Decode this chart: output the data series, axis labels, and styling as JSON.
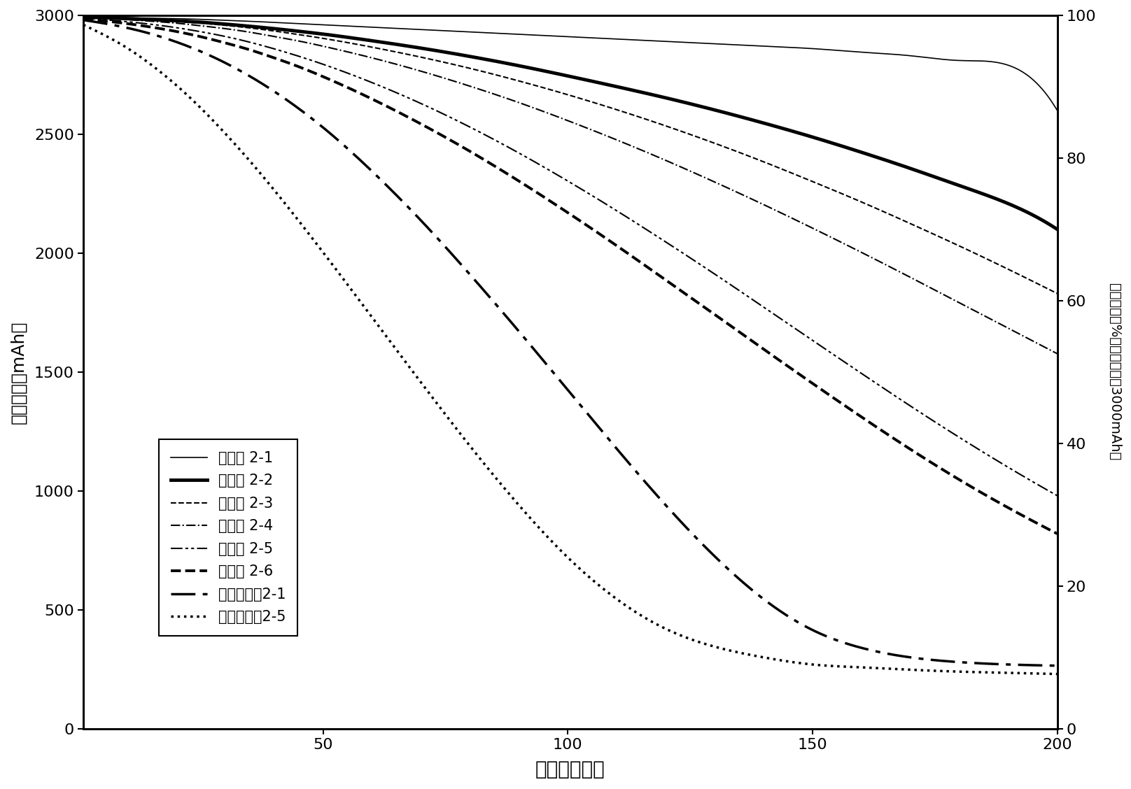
{
  "xlabel": "循环（次数）",
  "ylabel_left": "放电容量（mAh）",
  "ylabel_right": "容量比率（%，初期容量为3000mAh）",
  "xlim": [
    1,
    200
  ],
  "ylim_left": [
    0,
    3000
  ],
  "ylim_right": [
    0,
    100
  ],
  "xticks": [
    50,
    100,
    150,
    200
  ],
  "yticks_left": [
    0,
    500,
    1000,
    1500,
    2000,
    2500,
    3000
  ],
  "yticks_right": [
    0,
    20,
    40,
    60,
    80,
    100
  ],
  "series": [
    {
      "label": "实施例 2-1",
      "linestyle": "solid",
      "linewidth": 1.2,
      "color": "#000000",
      "x": [
        1,
        5,
        10,
        15,
        20,
        25,
        30,
        35,
        40,
        45,
        50,
        60,
        70,
        80,
        90,
        100,
        110,
        120,
        130,
        140,
        150,
        160,
        170,
        180,
        190,
        200
      ],
      "y": [
        2995,
        2993,
        2990,
        2988,
        2986,
        2983,
        2979,
        2975,
        2970,
        2965,
        2960,
        2950,
        2940,
        2930,
        2920,
        2910,
        2900,
        2890,
        2880,
        2870,
        2860,
        2845,
        2830,
        2810,
        2790,
        2600
      ]
    },
    {
      "label": "实施例 2-2",
      "linestyle": "solid",
      "linewidth": 3.5,
      "color": "#000000",
      "x": [
        1,
        5,
        10,
        15,
        20,
        25,
        30,
        35,
        40,
        45,
        50,
        60,
        70,
        80,
        90,
        100,
        110,
        120,
        130,
        140,
        150,
        160,
        170,
        180,
        190,
        200
      ],
      "y": [
        2993,
        2990,
        2986,
        2982,
        2977,
        2971,
        2963,
        2954,
        2944,
        2933,
        2921,
        2893,
        2862,
        2827,
        2788,
        2745,
        2700,
        2653,
        2602,
        2547,
        2488,
        2424,
        2356,
        2284,
        2208,
        2100
      ]
    },
    {
      "label": "实施例 2-3",
      "linestyle": "dashed",
      "linewidth": 1.5,
      "color": "#000000",
      "x": [
        1,
        5,
        10,
        15,
        20,
        25,
        30,
        35,
        40,
        45,
        50,
        60,
        70,
        80,
        90,
        100,
        110,
        120,
        130,
        140,
        150,
        160,
        170,
        180,
        190,
        200
      ],
      "y": [
        2992,
        2989,
        2985,
        2980,
        2974,
        2967,
        2958,
        2947,
        2934,
        2919,
        2903,
        2866,
        2824,
        2777,
        2724,
        2666,
        2603,
        2535,
        2462,
        2384,
        2301,
        2215,
        2124,
        2030,
        1932,
        1830
      ]
    },
    {
      "label": "实施例 2-4",
      "linestyle": "dashdot",
      "linewidth": 1.5,
      "color": "#000000",
      "x": [
        1,
        5,
        10,
        15,
        20,
        25,
        30,
        35,
        40,
        45,
        50,
        60,
        70,
        80,
        90,
        100,
        110,
        120,
        130,
        140,
        150,
        160,
        170,
        180,
        190,
        200
      ],
      "y": [
        2991,
        2987,
        2982,
        2975,
        2967,
        2956,
        2944,
        2929,
        2911,
        2892,
        2870,
        2821,
        2765,
        2702,
        2633,
        2557,
        2476,
        2390,
        2299,
        2204,
        2105,
        2003,
        1898,
        1791,
        1684,
        1577
      ]
    },
    {
      "label": "实施例 2-5",
      "linestyle": "dashdotdotted",
      "linewidth": 1.5,
      "color": "#000000",
      "x": [
        1,
        5,
        10,
        15,
        20,
        25,
        30,
        35,
        40,
        45,
        50,
        60,
        70,
        80,
        90,
        100,
        110,
        120,
        130,
        140,
        150,
        160,
        170,
        180,
        190,
        200
      ],
      "y": [
        2988,
        2982,
        2973,
        2962,
        2948,
        2931,
        2911,
        2887,
        2859,
        2828,
        2794,
        2717,
        2629,
        2530,
        2421,
        2303,
        2178,
        2047,
        1912,
        1773,
        1633,
        1494,
        1357,
        1225,
        1099,
        980
      ]
    },
    {
      "label": "实施例 2-6",
      "linestyle": "dashed",
      "linewidth": 2.8,
      "color": "#000000",
      "x": [
        1,
        5,
        10,
        15,
        20,
        25,
        30,
        35,
        40,
        45,
        50,
        60,
        70,
        80,
        90,
        100,
        110,
        120,
        130,
        140,
        150,
        160,
        170,
        180,
        190,
        200
      ],
      "y": [
        2985,
        2977,
        2965,
        2950,
        2932,
        2910,
        2884,
        2855,
        2821,
        2784,
        2742,
        2648,
        2543,
        2428,
        2303,
        2170,
        2031,
        1887,
        1742,
        1596,
        1452,
        1311,
        1175,
        1047,
        929,
        820
      ]
    },
    {
      "label": "比较实施例2-1",
      "linestyle": "dashdot2",
      "linewidth": 2.5,
      "color": "#000000",
      "x": [
        1,
        5,
        10,
        15,
        20,
        25,
        30,
        35,
        40,
        45,
        50,
        60,
        70,
        80,
        90,
        100,
        110,
        120,
        130,
        140,
        150,
        160,
        170,
        180,
        190,
        200
      ],
      "y": [
        2980,
        2967,
        2947,
        2921,
        2888,
        2848,
        2800,
        2744,
        2680,
        2608,
        2528,
        2344,
        2137,
        1910,
        1671,
        1424,
        1177,
        940,
        725,
        545,
        415,
        340,
        300,
        280,
        270,
        265
      ]
    },
    {
      "label": "比较实施例2-5",
      "linestyle": "dotted",
      "linewidth": 2.5,
      "color": "#000000",
      "x": [
        1,
        5,
        10,
        15,
        20,
        25,
        30,
        35,
        40,
        45,
        50,
        60,
        70,
        80,
        90,
        100,
        110,
        120,
        130,
        140,
        150,
        160,
        170,
        180,
        190,
        200
      ],
      "y": [
        2960,
        2920,
        2862,
        2790,
        2706,
        2610,
        2503,
        2388,
        2265,
        2136,
        2003,
        1730,
        1456,
        1189,
        940,
        720,
        545,
        420,
        345,
        300,
        270,
        258,
        248,
        240,
        235,
        230
      ]
    }
  ]
}
